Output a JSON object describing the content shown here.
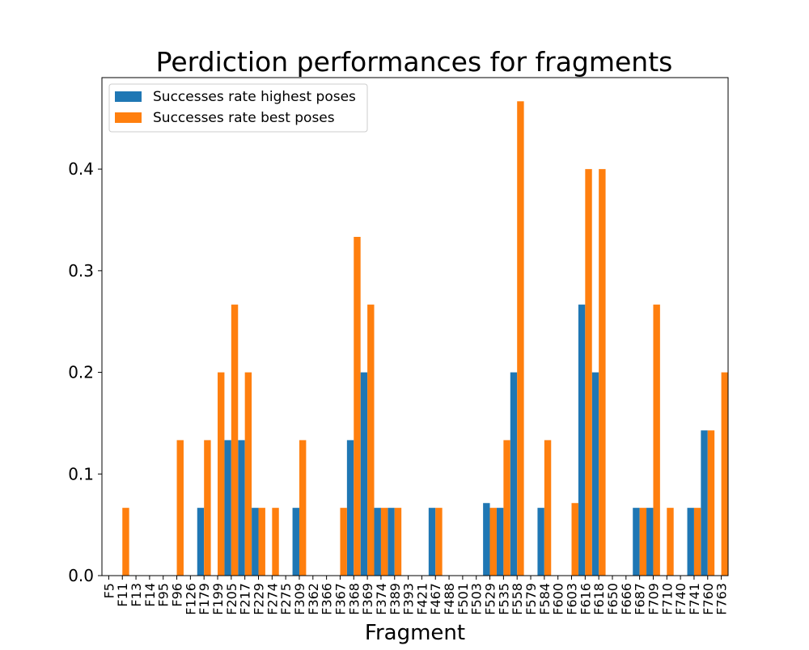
{
  "chart_data": {
    "type": "bar",
    "title": "Perdiction performances for fragments",
    "xlabel": "Fragment",
    "ylabel": "",
    "ylim": [
      0,
      0.49
    ],
    "yticks": [
      "0.0",
      "0.1",
      "0.2",
      "0.3",
      "0.4"
    ],
    "ytick_values": [
      0.0,
      0.1,
      0.2,
      0.3,
      0.4
    ],
    "legend_position": "top-left",
    "grid": false,
    "categories": [
      "F5",
      "F11",
      "F13",
      "F14",
      "F95",
      "F96",
      "F126",
      "F179",
      "F199",
      "F205",
      "F217",
      "F229",
      "F274",
      "F275",
      "F309",
      "F362",
      "F366",
      "F367",
      "F368",
      "F369",
      "F374",
      "F389",
      "F393",
      "F421",
      "F467",
      "F488",
      "F501",
      "F503",
      "F529",
      "F535",
      "F558",
      "F579",
      "F584",
      "F600",
      "F603",
      "F616",
      "F618",
      "F650",
      "F666",
      "F687",
      "F709",
      "F710",
      "F740",
      "F741",
      "F760",
      "F763"
    ],
    "series": [
      {
        "name": "Successes rate highest poses",
        "color": "#1f77b4",
        "values": [
          0,
          0,
          0,
          0,
          0,
          0,
          0,
          0.0667,
          0,
          0.1333,
          0.1333,
          0.0667,
          0,
          0,
          0.0667,
          0,
          0,
          0,
          0.1333,
          0.2,
          0.0667,
          0.0667,
          0,
          0,
          0.0667,
          0,
          0,
          0,
          0.0714,
          0.0667,
          0.2,
          0,
          0.0667,
          0,
          0,
          0.2667,
          0.2,
          0,
          0,
          0.0667,
          0.0667,
          0,
          0,
          0.0667,
          0.1429,
          0
        ]
      },
      {
        "name": "Successes rate best poses",
        "color": "#ff7f0e",
        "values": [
          0,
          0.0667,
          0,
          0,
          0,
          0.1333,
          0,
          0.1333,
          0.2,
          0.2667,
          0.2,
          0.0667,
          0.0667,
          0,
          0.1333,
          0,
          0,
          0.0667,
          0.3333,
          0.2667,
          0.0667,
          0.0667,
          0,
          0,
          0.0667,
          0,
          0,
          0,
          0.0667,
          0.1333,
          0.4667,
          0,
          0.1333,
          0,
          0.0714,
          0.4,
          0.4,
          0,
          0,
          0.0667,
          0.2667,
          0.0667,
          0,
          0.0667,
          0.1429,
          0.2
        ]
      }
    ]
  }
}
